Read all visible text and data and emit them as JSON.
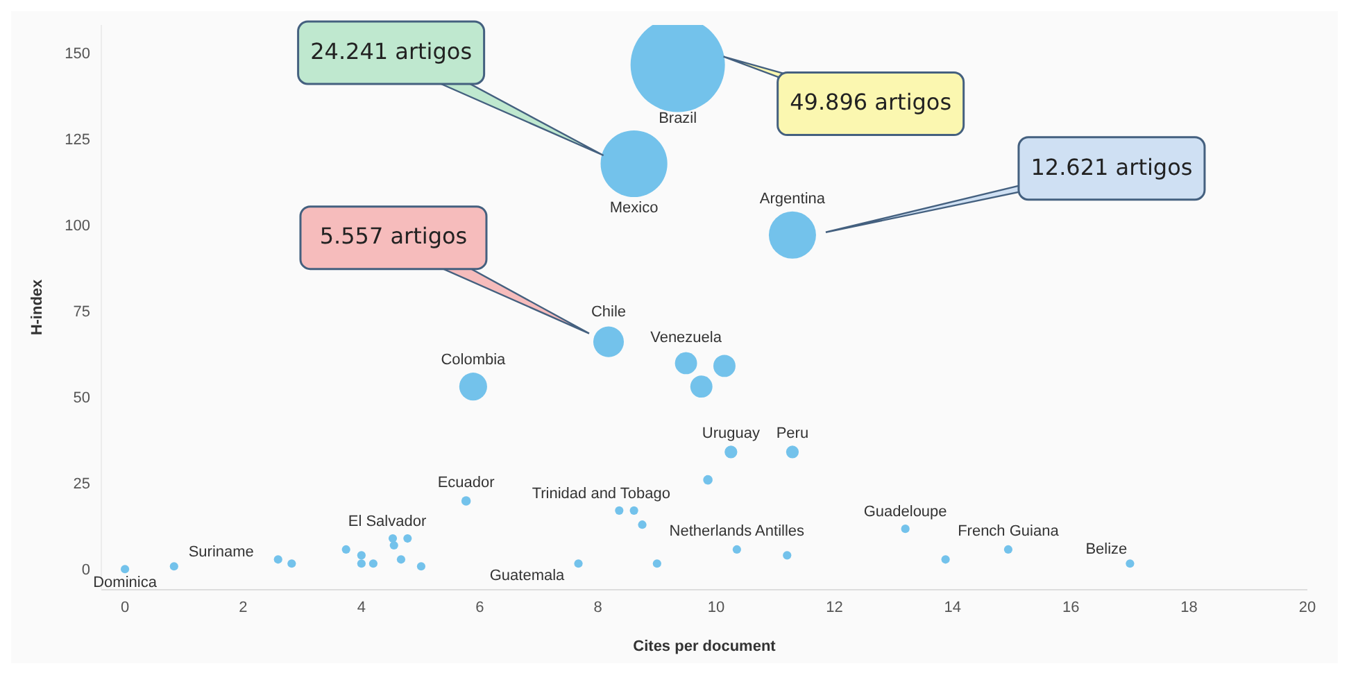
{
  "chart_data": {
    "type": "bubble",
    "xlabel": "Cites per document",
    "ylabel": "H-index",
    "xlim": [
      -0.4,
      20
    ],
    "xticks": [
      0,
      2,
      4,
      6,
      8,
      10,
      12,
      14,
      16,
      18,
      20
    ],
    "ylim": [
      -6,
      158
    ],
    "yticks": [
      0,
      25,
      50,
      75,
      100,
      125,
      150
    ],
    "grid": false,
    "legend": false,
    "series": [
      {
        "color": "#73c2eb",
        "x": [
          9.35,
          8.61,
          11.29,
          8.18,
          5.89,
          9.49,
          10.14,
          9.75,
          10.25,
          11.29,
          9.86,
          5.77,
          8.36,
          8.61,
          8.75,
          10.35,
          11.2,
          9.0,
          7.67,
          13.2,
          13.88,
          14.94,
          17.0,
          0,
          0.83,
          2.59,
          2.82,
          3.74,
          4.0,
          4.0,
          4.2,
          4.53,
          4.55,
          4.78,
          4.67,
          5.01
        ],
        "values": [
          146.4,
          117.7,
          97,
          66,
          53,
          59.8,
          59,
          53,
          34,
          34,
          25.9,
          19.8,
          17,
          17,
          12.9,
          5.7,
          4,
          1.6,
          1.6,
          11.7,
          2.8,
          5.7,
          1.6,
          0,
          0.8,
          2.8,
          1.6,
          5.7,
          4,
          1.6,
          1.6,
          8.9,
          6.9,
          8.9,
          2.8,
          0.8
        ],
        "sizes": [
          1,
          0.5,
          0.25,
          0.105,
          0.087,
          0.055,
          0.055,
          0.055,
          0.018,
          0.018,
          0.01,
          0.01,
          0.008,
          0.008,
          0.008,
          0.008,
          0.008,
          0.008,
          0.008,
          0.008,
          0.008,
          0.008,
          0.008,
          0.008,
          0.008,
          0.008,
          0.008,
          0.008,
          0.008,
          0.008,
          0.008,
          0.008,
          0.008,
          0.008,
          0.008,
          0.008
        ]
      }
    ],
    "annotations": [
      "24.241 artigos",
      "49.896 artigos",
      "12.621 artigos",
      "5.557 artigos",
      {
        "text": "Brazil",
        "x": 9.35,
        "y": 146.4
      },
      {
        "text": "Mexico",
        "x": 8.61,
        "y": 117.7
      },
      {
        "text": "Argentina",
        "x": 11.29,
        "y": 97
      },
      {
        "text": "Chile",
        "x": 8.18,
        "y": 66
      },
      {
        "text": "Colombia",
        "x": 5.89,
        "y": 53
      },
      {
        "text": "Venezuela",
        "x": 9.49,
        "y": 59.8
      },
      {
        "text": "Uruguay",
        "x": 10.25,
        "y": 34
      },
      {
        "text": "Peru",
        "x": 11.29,
        "y": 34
      },
      {
        "text": "Ecuador",
        "x": 5.77,
        "y": 19.8
      },
      {
        "text": "Trinidad and Tobago",
        "x": 8.36,
        "y": 17
      },
      {
        "text": "Netherlands Antilles",
        "x": 10.35,
        "y": 5.7
      },
      {
        "text": "Guatemala",
        "x": 7.67,
        "y": 1.6
      },
      {
        "text": "Guadeloupe",
        "x": 13.2,
        "y": 11.7
      },
      {
        "text": "French Guiana",
        "x": 14.94,
        "y": 5.7
      },
      {
        "text": "Belize",
        "x": 17.0,
        "y": 1.6
      },
      {
        "text": "Dominica",
        "x": 0,
        "y": 0
      },
      {
        "text": "Suriname",
        "x": 0.83,
        "y": 0.8
      },
      {
        "text": "El Salvador",
        "x": 4.53,
        "y": 8.9
      }
    ]
  }
}
